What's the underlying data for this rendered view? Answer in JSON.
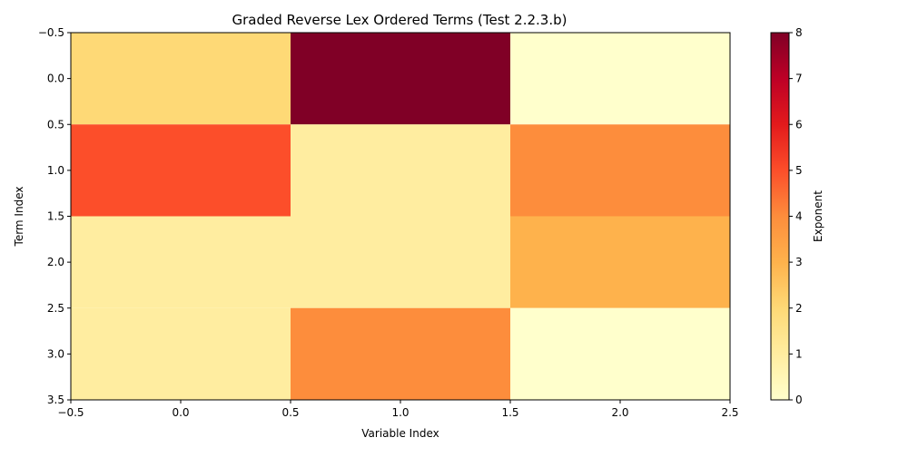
{
  "chart_data": {
    "type": "heatmap",
    "title": "Graded Reverse Lex Ordered Terms (Test 2.2.3.b)",
    "xlabel": "Variable Index",
    "ylabel": "Term Index",
    "x_categories": [
      0,
      1,
      2
    ],
    "y_categories": [
      0,
      1,
      2,
      3
    ],
    "values": [
      [
        2,
        8,
        0
      ],
      [
        5,
        1,
        4
      ],
      [
        1,
        1,
        3
      ],
      [
        1,
        4,
        0
      ]
    ],
    "xlim": [
      -0.5,
      2.5
    ],
    "ylim": [
      3.5,
      -0.5
    ],
    "x_ticks": [
      "−0.5",
      "0.0",
      "0.5",
      "1.0",
      "1.5",
      "2.0",
      "2.5"
    ],
    "y_ticks": [
      "−0.5",
      "0.0",
      "0.5",
      "1.0",
      "1.5",
      "2.0",
      "2.5",
      "3.0",
      "3.5"
    ],
    "colorbar": {
      "label": "Exponent",
      "range": [
        0,
        8
      ],
      "ticks": [
        "0",
        "1",
        "2",
        "3",
        "4",
        "5",
        "6",
        "7",
        "8"
      ],
      "colormap": "YlOrRd",
      "colors": [
        "#ffffcc",
        "#ffeda0",
        "#fed976",
        "#feb24c",
        "#fd8d3c",
        "#fc4e2a",
        "#e31a1c",
        "#bd0026",
        "#800026"
      ]
    },
    "grid": false
  }
}
